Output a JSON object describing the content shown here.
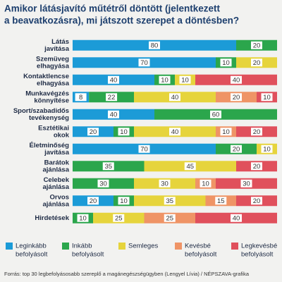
{
  "chart_data": {
    "type": "stacked_bar",
    "orientation": "horizontal",
    "title": [
      "Amikor látásjavító műtétről döntött (jelentkezett",
      "a beavatkozásra), mi játszott szerepet a döntésben?"
    ],
    "categories": [
      [
        "Látás",
        "javítása"
      ],
      [
        "Szemüveg",
        "elhagyása"
      ],
      [
        "Kontaktlencse",
        "elhagyása"
      ],
      [
        "Munkavégzés",
        "könnyítése"
      ],
      [
        "Sport/szabadidős",
        "tevékenység"
      ],
      [
        "Esztétikai",
        "okok"
      ],
      [
        "Életminőség",
        "javítása"
      ],
      [
        "Barátok",
        "ajánlása"
      ],
      [
        "Celebek",
        "ajánlása"
      ],
      [
        "Orvos",
        "ajánlása"
      ],
      [
        "Hirdetések"
      ]
    ],
    "series": [
      {
        "name": [
          "Leginkább",
          "befolyásolt"
        ],
        "color": "#1c9bd7",
        "values": [
          80,
          70,
          40,
          8,
          40,
          20,
          70,
          null,
          null,
          20,
          null
        ]
      },
      {
        "name": [
          "Inkább",
          "befolyásolt"
        ],
        "color": "#2ba64c",
        "values": [
          20,
          10,
          10,
          22,
          60,
          10,
          20,
          35,
          30,
          10,
          10
        ]
      },
      {
        "name": [
          "Semleges"
        ],
        "color": "#e6d43c",
        "values": [
          null,
          20,
          10,
          40,
          null,
          40,
          10,
          45,
          30,
          35,
          25
        ]
      },
      {
        "name": [
          "Kevésbé",
          "befolyásolt"
        ],
        "color": "#ef9466",
        "values": [
          null,
          null,
          null,
          20,
          null,
          10,
          null,
          null,
          10,
          15,
          25
        ]
      },
      {
        "name": [
          "Legkevésbé",
          "befolyásolt"
        ],
        "color": "#e0505c",
        "values": [
          null,
          null,
          40,
          10,
          null,
          20,
          null,
          20,
          30,
          20,
          40
        ]
      }
    ],
    "source": "Forrás: top 30 legbefolyásosabb szereplő a magánegészségügyben (Lengyel Lívia) / NÉPSZAVA-grafika"
  }
}
